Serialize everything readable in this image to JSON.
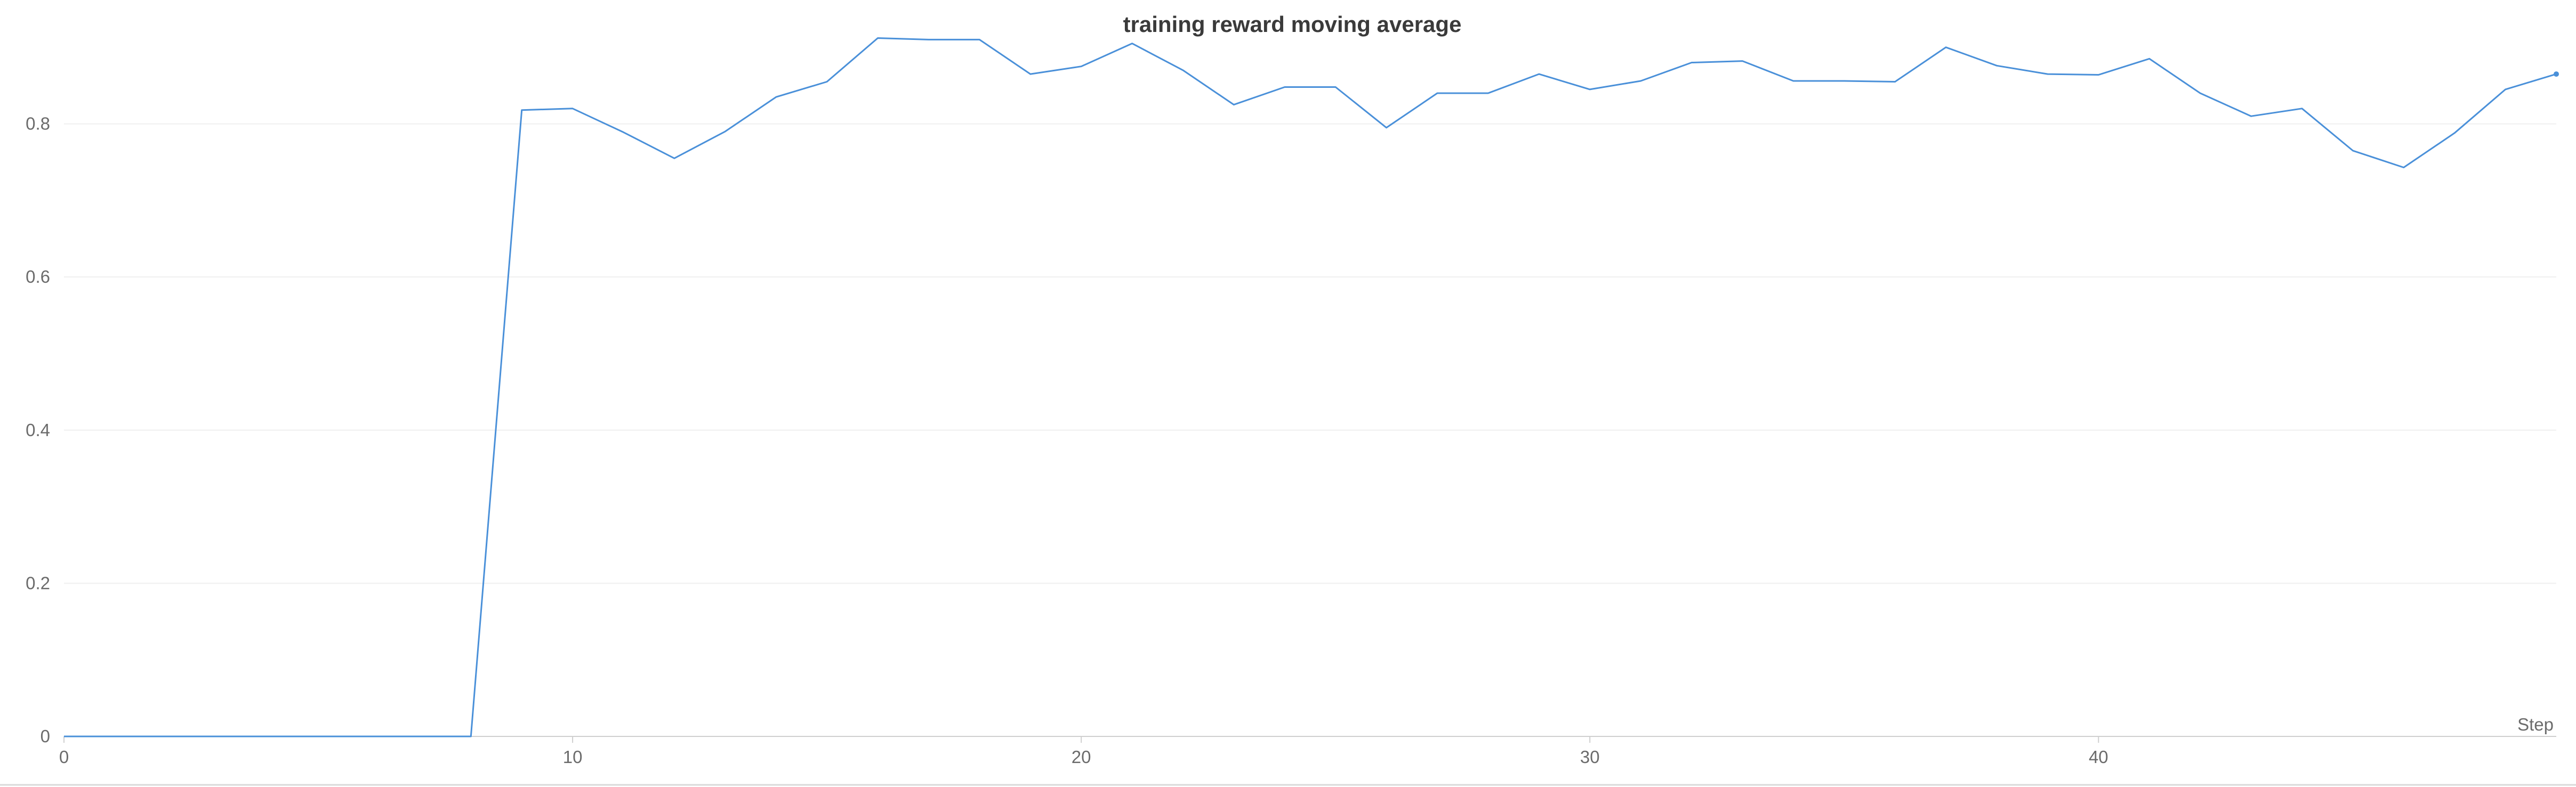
{
  "chart_data": {
    "type": "line",
    "title": "training reward moving average",
    "xlabel": "Step",
    "ylabel": "",
    "xlim": [
      0,
      49
    ],
    "ylim": [
      0,
      0.92
    ],
    "xticks": [
      0,
      10,
      20,
      30,
      40
    ],
    "yticks": [
      0,
      0.2,
      0.4,
      0.6,
      0.8
    ],
    "ytick_labels": [
      "0",
      "0.2",
      "0.4",
      "0.6",
      "0.8"
    ],
    "grid": true,
    "legend": "none",
    "series": [
      {
        "color": "#4a90d9",
        "x": [
          0,
          1,
          2,
          3,
          4,
          5,
          6,
          7,
          8,
          9,
          10,
          11,
          12,
          13,
          14,
          15,
          16,
          17,
          18,
          19,
          20,
          21,
          22,
          23,
          24,
          25,
          26,
          27,
          28,
          29,
          30,
          31,
          32,
          33,
          34,
          35,
          36,
          37,
          38,
          39,
          40,
          41,
          42,
          43,
          44,
          45,
          46,
          47,
          48,
          49
        ],
        "y": [
          0,
          0,
          0,
          0,
          0,
          0,
          0,
          0,
          0,
          0.818,
          0.82,
          0.789,
          0.755,
          0.79,
          0.835,
          0.855,
          0.912,
          0.91,
          0.91,
          0.865,
          0.875,
          0.905,
          0.87,
          0.825,
          0.848,
          0.848,
          0.795,
          0.84,
          0.84,
          0.865,
          0.845,
          0.856,
          0.88,
          0.882,
          0.856,
          0.856,
          0.855,
          0.9,
          0.876,
          0.865,
          0.864,
          0.885,
          0.84,
          0.81,
          0.82,
          0.765,
          0.743,
          0.788,
          0.845,
          0.865
        ]
      }
    ]
  }
}
